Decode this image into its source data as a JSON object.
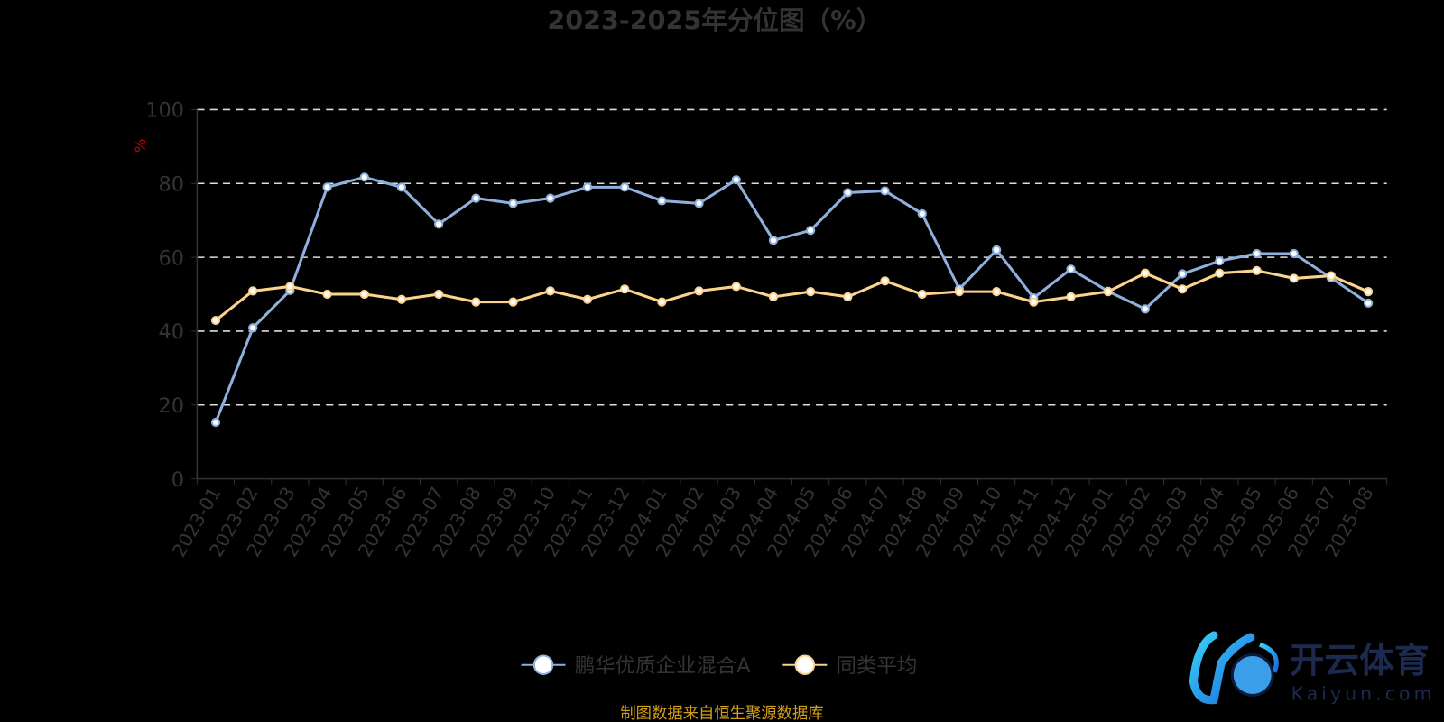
{
  "chart_data": {
    "type": "line",
    "title": "2023-2025年分位图（%）",
    "ylabel": "%",
    "ylim": [
      0,
      100
    ],
    "yticks": [
      0,
      20,
      40,
      60,
      80,
      100
    ],
    "grid": true,
    "legend_position": "bottom",
    "categories": [
      "2023-01",
      "2023-02",
      "2023-03",
      "2023-04",
      "2023-05",
      "2023-06",
      "2023-07",
      "2023-08",
      "2023-09",
      "2023-10",
      "2023-11",
      "2023-12",
      "2024-01",
      "2024-02",
      "2024-03",
      "2024-04",
      "2024-05",
      "2024-06",
      "2024-07",
      "2024-08",
      "2024-09",
      "2024-10",
      "2024-11",
      "2024-12",
      "2025-01",
      "2025-02",
      "2025-03",
      "2025-04",
      "2025-05",
      "2025-06",
      "2025-07",
      "2025-08"
    ],
    "series": [
      {
        "name": "鹏华优质企业混合A",
        "color": "#8fb0dc",
        "values": [
          15.3,
          40.9,
          51.0,
          79.0,
          81.7,
          79.0,
          69.0,
          76.0,
          74.6,
          76.0,
          79.0,
          79.0,
          75.3,
          74.6,
          81.0,
          64.6,
          67.3,
          77.5,
          78.0,
          71.8,
          51.4,
          62.0,
          49.0,
          56.8,
          50.8,
          46.0,
          55.5,
          59.0,
          61.0,
          61.0,
          54.4,
          47.6
        ]
      },
      {
        "name": "同类平均",
        "color": "#fcd38c",
        "values": [
          42.9,
          50.9,
          52.1,
          50.0,
          50.0,
          48.6,
          50.0,
          47.9,
          47.9,
          50.9,
          48.6,
          51.4,
          47.9,
          50.9,
          52.1,
          49.3,
          50.7,
          49.3,
          53.6,
          50.0,
          50.7,
          50.7,
          47.9,
          49.3,
          50.7,
          55.7,
          51.4,
          55.7,
          56.4,
          54.3,
          55.0,
          50.7
        ]
      }
    ]
  },
  "footer": "制图数据来自恒生聚源数据库",
  "watermark": {
    "brand": "开云体育",
    "domain": "Kaiyun.com"
  },
  "colors": {
    "grid": "#dddddd",
    "axis": "#333333",
    "ylabel": "#cc0000",
    "footer": "#d4a017"
  }
}
